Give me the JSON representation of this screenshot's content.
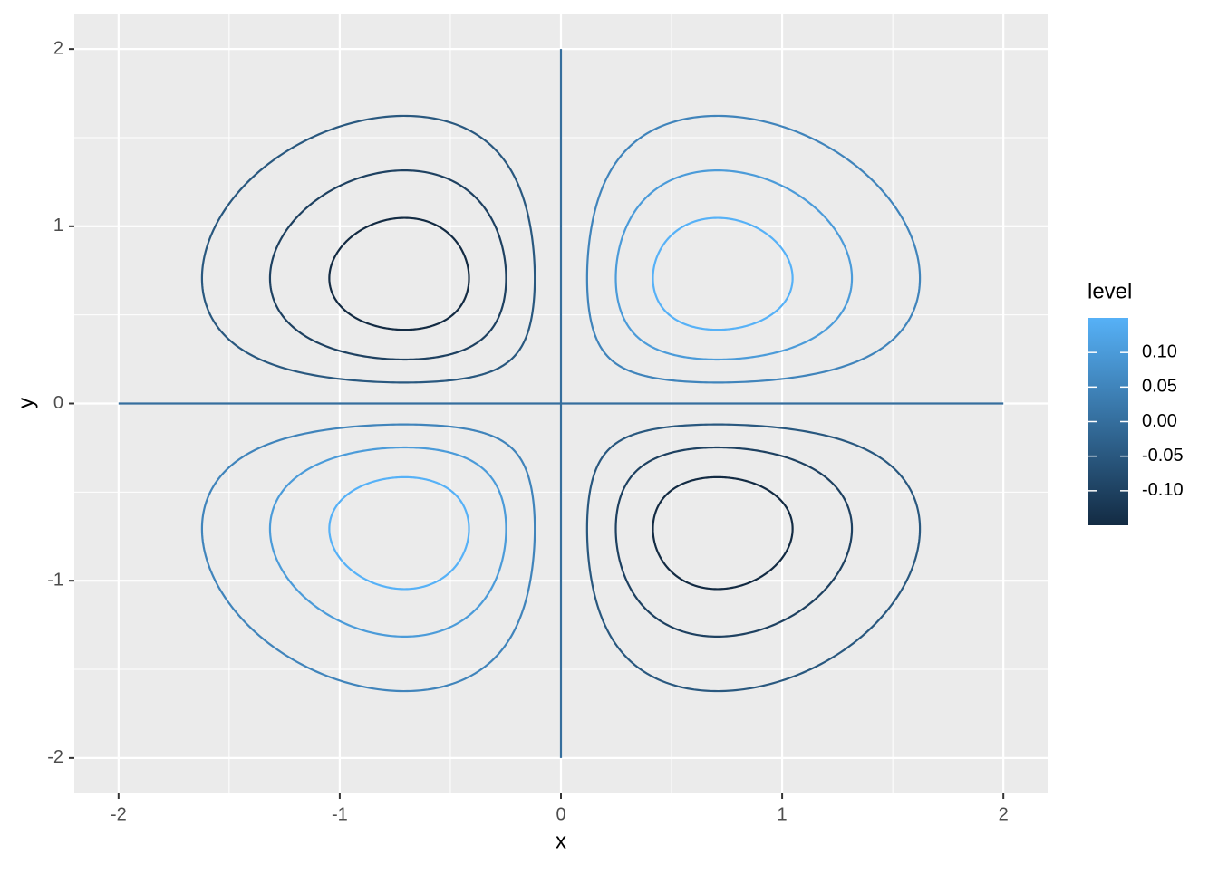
{
  "chart_data": {
    "type": "contour",
    "x_label": "x",
    "y_label": "y",
    "x": [
      -2,
      2
    ],
    "y": [
      -2,
      2
    ],
    "levels": [
      -0.15,
      -0.1,
      -0.05,
      0,
      0.05,
      0.1,
      0.15
    ],
    "xlim": [
      -2.2,
      2.2
    ],
    "ylim": [
      -2.2,
      2.2
    ],
    "xticks": [
      -2,
      -1,
      0,
      1,
      2
    ],
    "yticks": [
      -2,
      -1,
      0,
      1,
      2
    ],
    "minor_xticks": [
      -1.5,
      -0.5,
      0.5,
      1.5
    ],
    "minor_yticks": [
      -1.5,
      -0.5,
      0.5,
      1.5
    ],
    "grid": true,
    "colorbar": {
      "title": "level",
      "lim": [
        -0.15,
        0.15
      ],
      "low": "#132B43",
      "high": "#56B1F7",
      "ticks": [
        {
          "value": -0.1,
          "label": "-0.10"
        },
        {
          "value": -0.05,
          "label": "-0.05"
        },
        {
          "value": 0,
          "label": "0.00"
        },
        {
          "value": 0.05,
          "label": "0.05"
        },
        {
          "value": 0.1,
          "label": "0.10"
        }
      ]
    }
  }
}
